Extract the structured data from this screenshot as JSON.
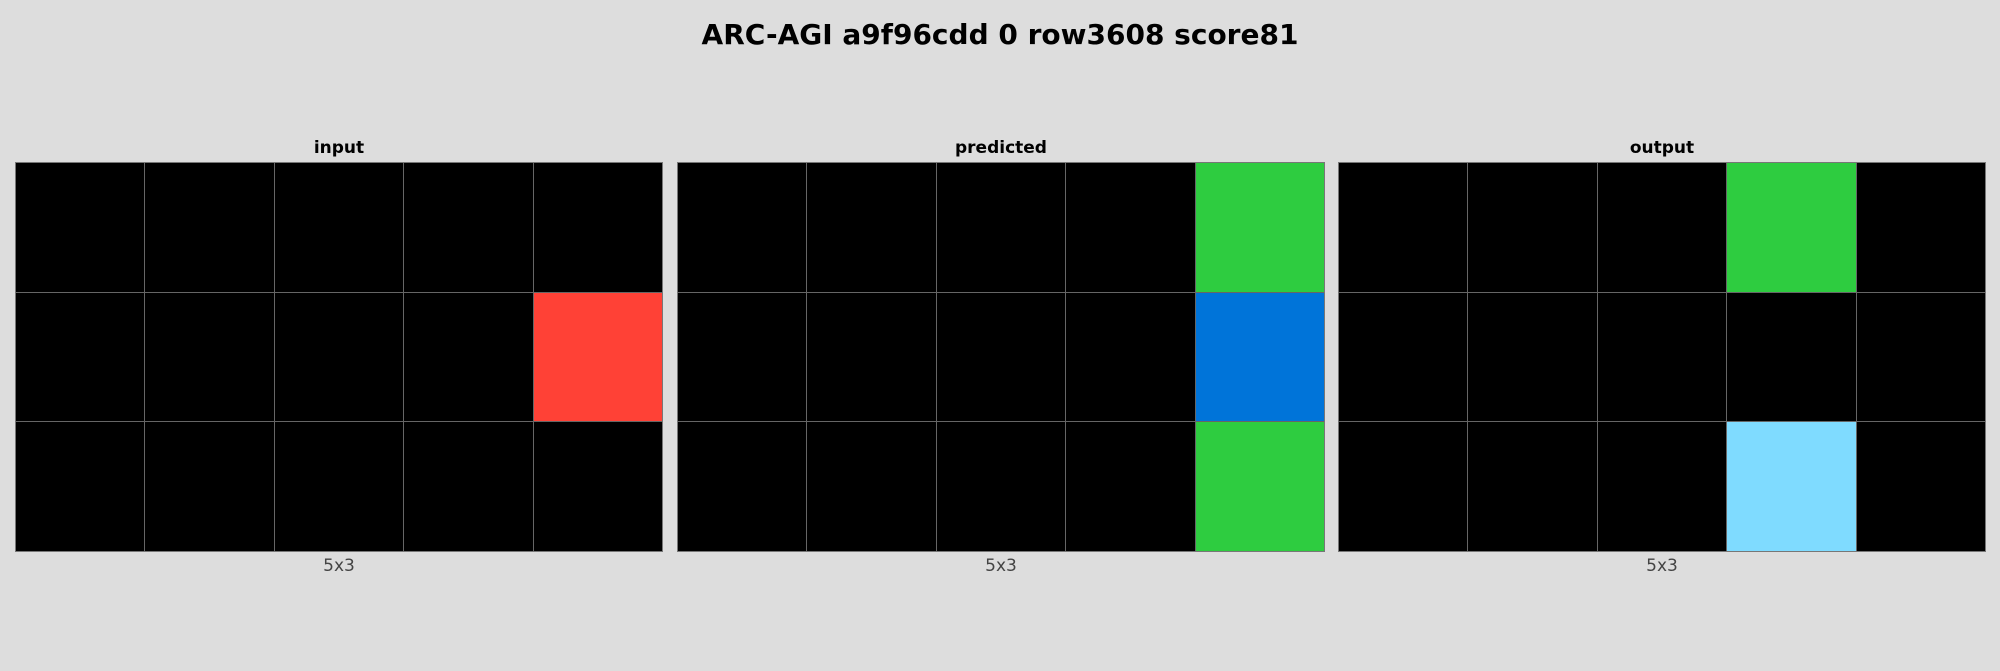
{
  "title": "ARC-AGI a9f96cdd 0 row3608 score81",
  "palette": {
    "0": "#000000",
    "2": "#ff4136",
    "3": "#2ecc40",
    "1": "#0074d9",
    "8": "#7fdbff"
  },
  "panels": [
    {
      "label": "input",
      "dims": "5x3",
      "grid": [
        [
          0,
          0,
          0,
          0,
          0
        ],
        [
          0,
          0,
          0,
          0,
          2
        ],
        [
          0,
          0,
          0,
          0,
          0
        ]
      ]
    },
    {
      "label": "predicted",
      "dims": "5x3",
      "grid": [
        [
          0,
          0,
          0,
          0,
          3
        ],
        [
          0,
          0,
          0,
          0,
          1
        ],
        [
          0,
          0,
          0,
          0,
          3
        ]
      ]
    },
    {
      "label": "output",
      "dims": "5x3",
      "grid": [
        [
          0,
          0,
          0,
          3,
          0
        ],
        [
          0,
          0,
          0,
          0,
          0
        ],
        [
          0,
          0,
          0,
          8,
          0
        ]
      ]
    }
  ]
}
